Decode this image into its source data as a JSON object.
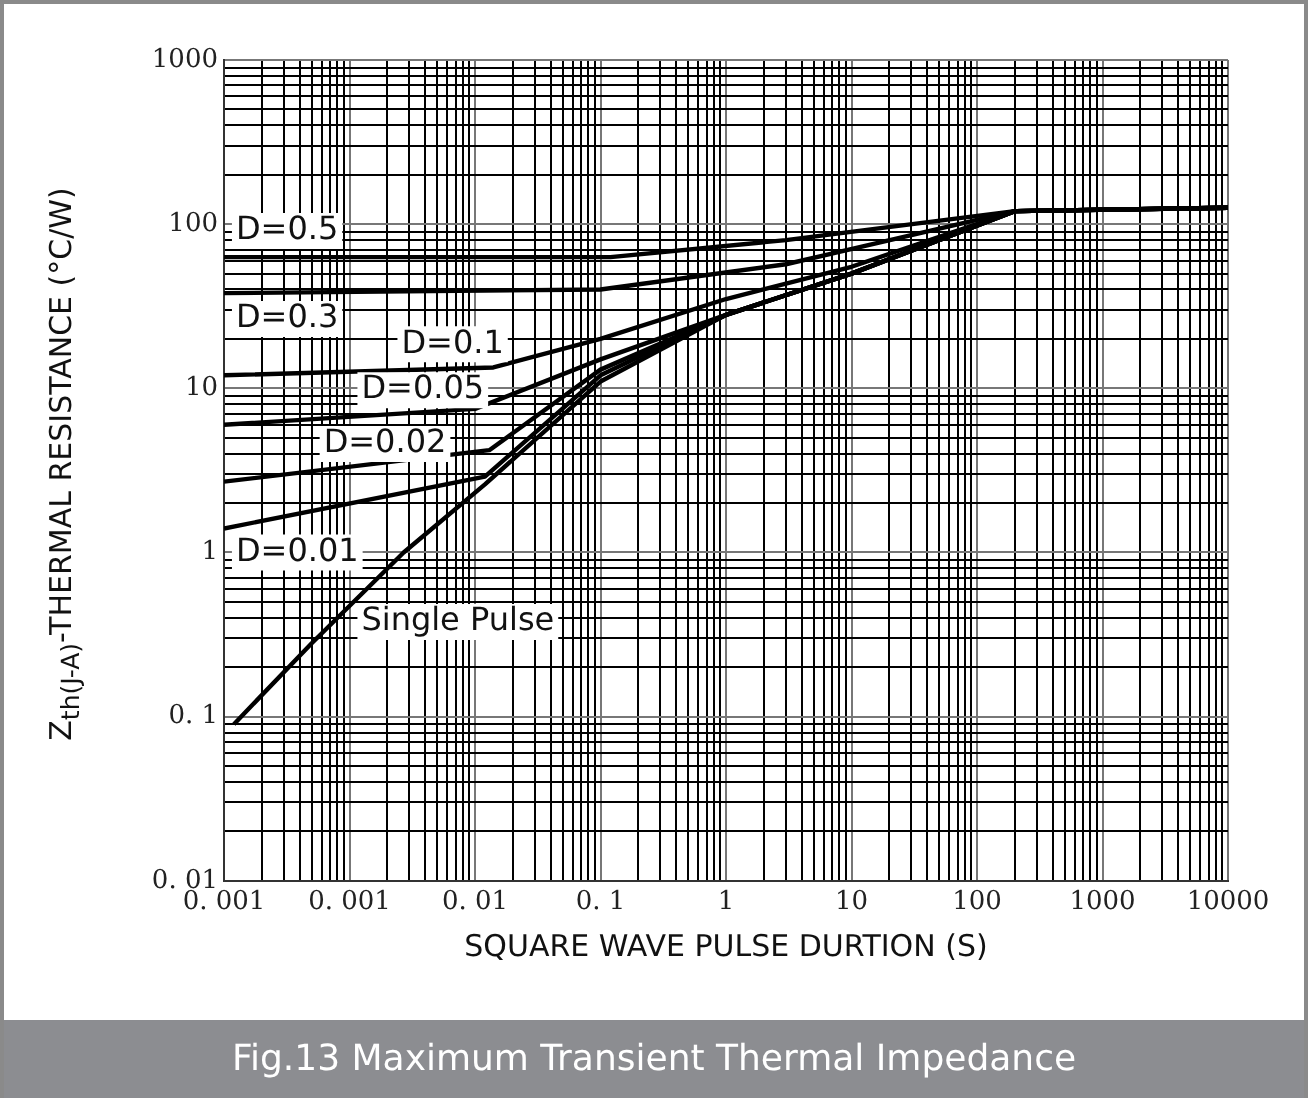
{
  "chart_data": {
    "type": "line",
    "title": "Fig.13 Maximum Transient Thermal Impedance",
    "xlabel": "SQUARE WAVE PULSE DURTION (S)",
    "ylabel": "Z$_{th(J-A)}$-THERMAL RESISTANCE (°C/W)",
    "log": "xy",
    "grid": true,
    "legend": false,
    "marker": "none",
    "line_style": "solid",
    "xlim": [
      0.0001,
      10000
    ],
    "ylim": [
      0.01,
      1000
    ],
    "xticks": [
      {
        "value": 0.0001,
        "label": "0. 001"
      },
      {
        "value": 0.0002,
        "label": null
      },
      {
        "value": 0.0003,
        "label": null
      },
      {
        "value": 0.0004,
        "label": null
      },
      {
        "value": 0.0005,
        "label": null
      },
      {
        "value": 0.0006,
        "label": null
      },
      {
        "value": 0.0007,
        "label": null
      },
      {
        "value": 0.0008,
        "label": null
      },
      {
        "value": 0.0009,
        "label": null
      },
      {
        "value": 0.001,
        "label": "0. 001"
      },
      {
        "value": 0.002,
        "label": null
      },
      {
        "value": 0.003,
        "label": null
      },
      {
        "value": 0.004,
        "label": null
      },
      {
        "value": 0.005,
        "label": null
      },
      {
        "value": 0.006,
        "label": null
      },
      {
        "value": 0.007,
        "label": null
      },
      {
        "value": 0.008,
        "label": null
      },
      {
        "value": 0.009,
        "label": null
      },
      {
        "value": 0.01,
        "label": "0. 01"
      },
      {
        "value": 0.02,
        "label": null
      },
      {
        "value": 0.03,
        "label": null
      },
      {
        "value": 0.04,
        "label": null
      },
      {
        "value": 0.05,
        "label": null
      },
      {
        "value": 0.06,
        "label": null
      },
      {
        "value": 0.07,
        "label": null
      },
      {
        "value": 0.08,
        "label": null
      },
      {
        "value": 0.09,
        "label": null
      },
      {
        "value": 0.1,
        "label": "0. 1"
      },
      {
        "value": 0.2,
        "label": null
      },
      {
        "value": 0.3,
        "label": null
      },
      {
        "value": 0.4,
        "label": null
      },
      {
        "value": 0.5,
        "label": null
      },
      {
        "value": 0.6,
        "label": null
      },
      {
        "value": 0.7,
        "label": null
      },
      {
        "value": 0.8,
        "label": null
      },
      {
        "value": 0.9,
        "label": null
      },
      1,
      {
        "value": 2,
        "label": null
      },
      {
        "value": 3,
        "label": null
      },
      {
        "value": 4,
        "label": null
      },
      {
        "value": 5,
        "label": null
      },
      {
        "value": 6,
        "label": null
      },
      {
        "value": 7,
        "label": null
      },
      {
        "value": 8,
        "label": null
      },
      {
        "value": 9,
        "label": null
      },
      10,
      {
        "value": 20,
        "label": null
      },
      {
        "value": 30,
        "label": null
      },
      {
        "value": 40,
        "label": null
      },
      {
        "value": 50,
        "label": null
      },
      {
        "value": 60,
        "label": null
      },
      {
        "value": 70,
        "label": null
      },
      {
        "value": 80,
        "label": null
      },
      {
        "value": 90,
        "label": null
      },
      100,
      {
        "value": 200,
        "label": null
      },
      {
        "value": 300,
        "label": null
      },
      {
        "value": 400,
        "label": null
      },
      {
        "value": 500,
        "label": null
      },
      {
        "value": 600,
        "label": null
      },
      {
        "value": 700,
        "label": null
      },
      {
        "value": 800,
        "label": null
      },
      {
        "value": 900,
        "label": null
      },
      1000,
      {
        "value": 2000,
        "label": null
      },
      {
        "value": 3000,
        "label": null
      },
      {
        "value": 4000,
        "label": null
      },
      {
        "value": 5000,
        "label": null
      },
      {
        "value": 6000,
        "label": null
      },
      {
        "value": 7000,
        "label": null
      },
      {
        "value": 8000,
        "label": null
      },
      {
        "value": 9000,
        "label": null
      },
      10000
    ],
    "yticks": [
      {
        "value": 0.01,
        "label": "0. 01"
      },
      {
        "value": 0.02,
        "label": null
      },
      {
        "value": 0.03,
        "label": null
      },
      {
        "value": 0.04,
        "label": null
      },
      {
        "value": 0.05,
        "label": null
      },
      {
        "value": 0.06,
        "label": null
      },
      {
        "value": 0.07,
        "label": null
      },
      {
        "value": 0.08,
        "label": null
      },
      {
        "value": 0.09,
        "label": null
      },
      {
        "value": 0.1,
        "label": "0. 1"
      },
      {
        "value": 0.2,
        "label": null
      },
      {
        "value": 0.3,
        "label": null
      },
      {
        "value": 0.4,
        "label": null
      },
      {
        "value": 0.5,
        "label": null
      },
      {
        "value": 0.6,
        "label": null
      },
      {
        "value": 0.7,
        "label": null
      },
      {
        "value": 0.8,
        "label": null
      },
      {
        "value": 0.9,
        "label": null
      },
      1,
      {
        "value": 2,
        "label": null
      },
      {
        "value": 3,
        "label": null
      },
      {
        "value": 4,
        "label": null
      },
      {
        "value": 5,
        "label": null
      },
      {
        "value": 6,
        "label": null
      },
      {
        "value": 7,
        "label": null
      },
      {
        "value": 8,
        "label": null
      },
      {
        "value": 9,
        "label": null
      },
      10,
      {
        "value": 20,
        "label": null
      },
      {
        "value": 30,
        "label": null
      },
      {
        "value": 40,
        "label": null
      },
      {
        "value": 50,
        "label": null
      },
      {
        "value": 60,
        "label": null
      },
      {
        "value": 70,
        "label": null
      },
      {
        "value": 80,
        "label": null
      },
      {
        "value": 90,
        "label": null
      },
      100,
      {
        "value": 200,
        "label": null
      },
      {
        "value": 300,
        "label": null
      },
      {
        "value": 400,
        "label": null
      },
      {
        "value": 500,
        "label": null
      },
      {
        "value": 600,
        "label": null
      },
      {
        "value": 700,
        "label": null
      },
      {
        "value": 800,
        "label": null
      },
      {
        "value": 900,
        "label": null
      },
      1000
    ],
    "series": [
      {
        "name": "D=0.5",
        "color": "#000000",
        "x": [
          0.0001,
          0.12,
          3,
          200,
          10000
        ],
        "values": [
          63,
          63,
          80,
          120,
          126
        ]
      },
      {
        "name": "D=0.3",
        "color": "#000000",
        "x": [
          0.0001,
          0.1,
          3,
          200,
          10000
        ],
        "values": [
          38,
          40,
          57,
          120,
          126
        ]
      },
      {
        "name": "D=0.1",
        "color": "#000000",
        "x": [
          0.0001,
          0.014,
          0.1,
          1,
          10,
          200,
          10000
        ],
        "values": [
          12,
          13.4,
          20,
          35,
          55,
          120,
          126
        ]
      },
      {
        "name": "D=0.05",
        "color": "#000000",
        "x": [
          0.0001,
          0.01,
          0.1,
          1,
          10,
          200,
          10000
        ],
        "values": [
          6,
          7.5,
          15,
          28,
          50,
          120,
          126
        ]
      },
      {
        "name": "D=0.02",
        "color": "#000000",
        "x": [
          0.0001,
          0.013,
          0.1,
          1,
          10,
          200,
          10000
        ],
        "values": [
          2.7,
          4.2,
          13,
          28,
          50,
          120,
          126
        ]
      },
      {
        "name": "D=0.01",
        "color": "#000000",
        "x": [
          0.0001,
          0.012,
          0.1,
          1,
          10,
          200,
          10000
        ],
        "values": [
          1.4,
          2.9,
          12,
          28,
          50,
          120,
          126
        ]
      },
      {
        "name": "Single Pulse",
        "color": "#000000",
        "x": [
          0.00012,
          0.0005,
          0.0027,
          0.012,
          0.1,
          1,
          10,
          200,
          10000
        ],
        "values": [
          0.09,
          0.28,
          1,
          2.6,
          11,
          28,
          50,
          120,
          126
        ]
      }
    ]
  }
}
